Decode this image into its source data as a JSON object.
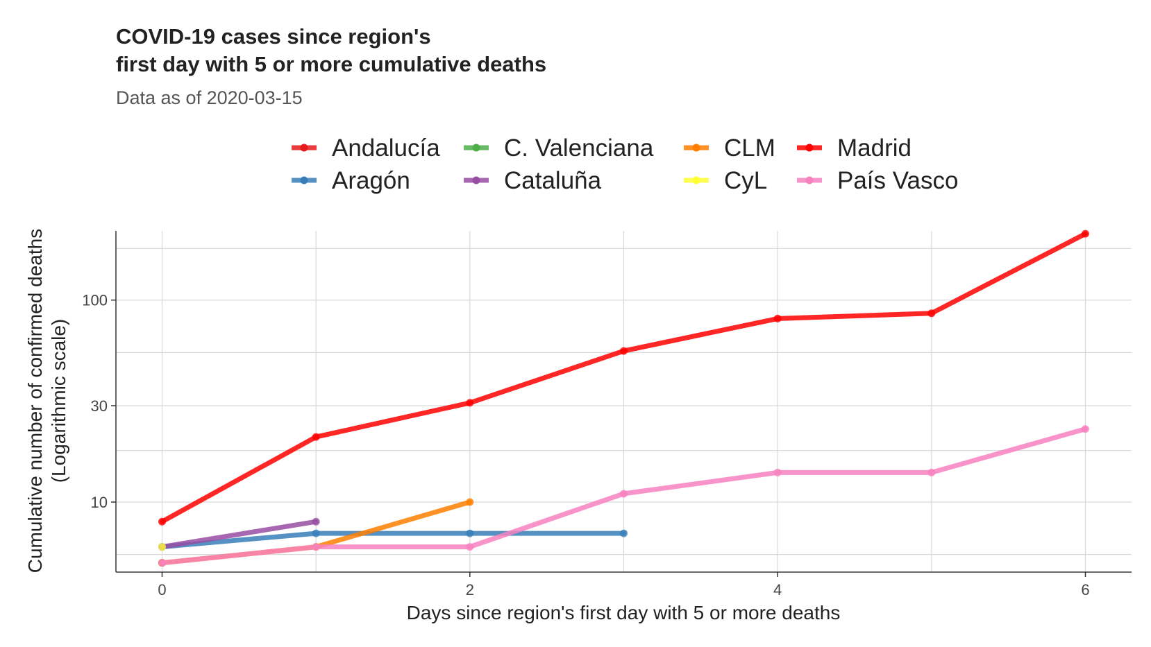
{
  "chart_data": {
    "type": "line",
    "title_lines": [
      "COVID-19 cases since region's",
      "first day with 5 or more cumulative deaths"
    ],
    "subtitle": "Data as of 2020-03-15",
    "xlabel": "Days since region's first day with 5 or more deaths",
    "ylabel_lines": [
      "Cumulative number of confirmed deaths",
      "(Logarithmic scale)"
    ],
    "y_scale": "log",
    "xlim": [
      -0.3,
      6.3
    ],
    "ylim": [
      4.5,
      220
    ],
    "x_ticks": [
      0,
      2,
      4,
      6
    ],
    "x_tick_labels": [
      "0",
      "2",
      "4",
      "6"
    ],
    "y_ticks": [
      10,
      30,
      100
    ],
    "y_tick_labels": [
      "10",
      "30",
      "100"
    ],
    "x_minor_grid": [
      1,
      3,
      5
    ],
    "y_minor_grid": [
      5.5,
      18,
      55,
      180
    ],
    "grid": true,
    "legend_position": "top",
    "series": [
      {
        "name": "Andalucía",
        "color": "#E41A1C",
        "x": [
          0
        ],
        "y": [
          5
        ]
      },
      {
        "name": "Aragón",
        "color": "#377EB8",
        "x": [
          0,
          1,
          2,
          3
        ],
        "y": [
          6,
          7,
          7,
          7
        ]
      },
      {
        "name": "C. Valenciana",
        "color": "#4DAF4A",
        "x": [
          0
        ],
        "y": [
          5
        ]
      },
      {
        "name": "Cataluña",
        "color": "#984EA3",
        "x": [
          0,
          1
        ],
        "y": [
          6,
          8
        ]
      },
      {
        "name": "CLM",
        "color": "#FF7F00",
        "x": [
          0,
          1,
          2
        ],
        "y": [
          5,
          6,
          10
        ]
      },
      {
        "name": "CyL",
        "color": "#FFFF33",
        "x": [
          0
        ],
        "y": [
          6
        ]
      },
      {
        "name": "Madrid",
        "color": "#FF0000",
        "x": [
          0,
          1,
          2,
          3,
          4,
          5,
          6
        ],
        "y": [
          8,
          21,
          31,
          56,
          81,
          86,
          213
        ]
      },
      {
        "name": "País Vasco",
        "color": "#F781BF",
        "x": [
          0,
          1,
          2,
          3,
          4,
          5,
          6
        ],
        "y": [
          5,
          6,
          6,
          11,
          14,
          14,
          23
        ]
      }
    ],
    "legend_order": [
      "Andalucía",
      "C. Valenciana",
      "CLM",
      "Madrid",
      "Aragón",
      "Cataluña",
      "CyL",
      "País Vasco"
    ]
  }
}
